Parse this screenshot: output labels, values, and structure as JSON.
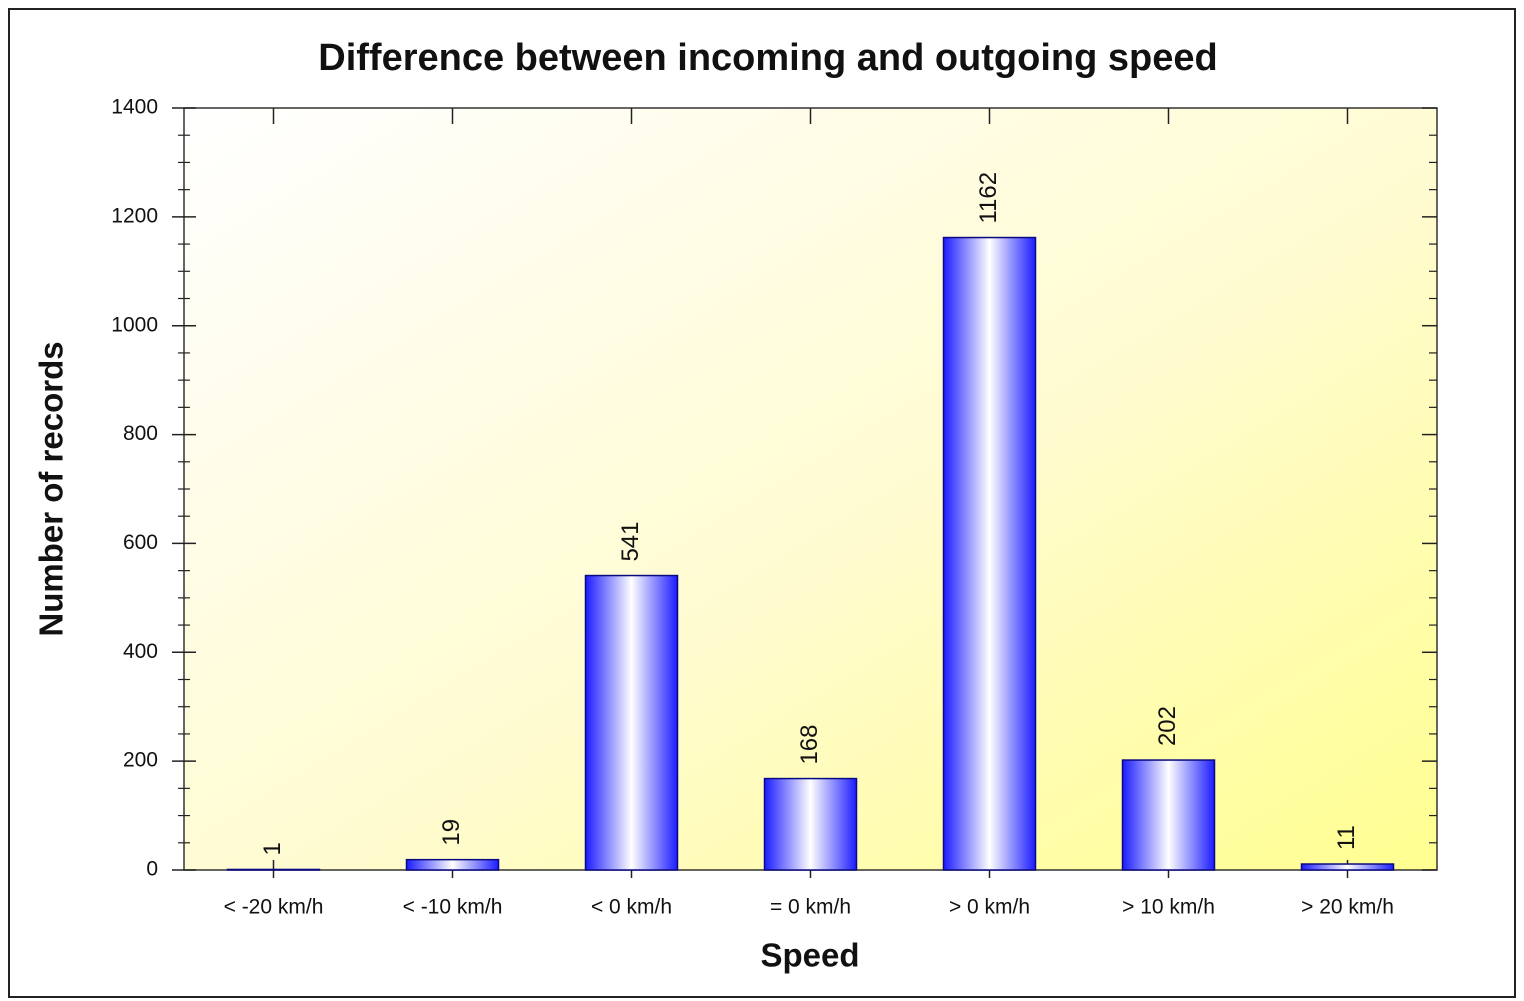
{
  "chart_data": {
    "type": "bar",
    "title": "Difference between incoming and outgoing speed",
    "x_label": "Speed",
    "y_label": "Number of records",
    "categories": [
      "< -20 km/h",
      "< -10 km/h",
      "< 0 km/h",
      "= 0 km/h",
      "> 0 km/h",
      "> 10 km/h",
      "> 20 km/h"
    ],
    "values": [
      1,
      19,
      541,
      168,
      1162,
      202,
      11
    ],
    "color": "#1c1cff",
    "ylim": [
      0,
      1400
    ],
    "yticks": [
      0,
      200,
      400,
      600,
      800,
      1000,
      1200,
      1400
    ]
  }
}
